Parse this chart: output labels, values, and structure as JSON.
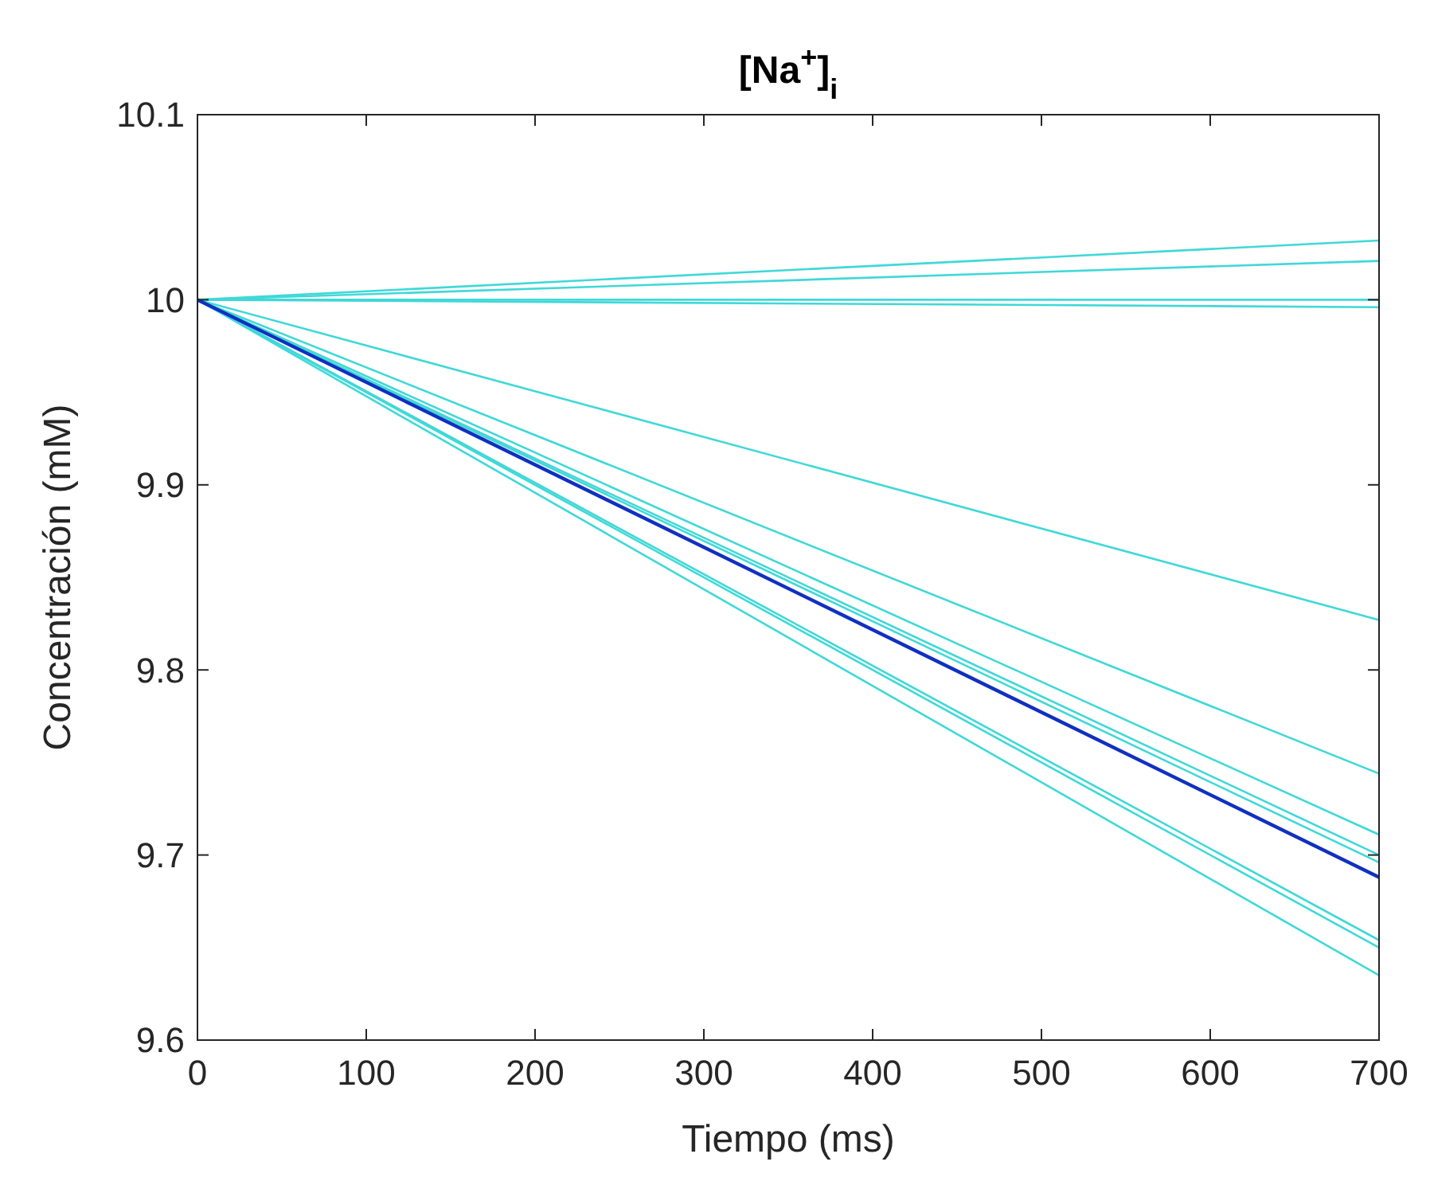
{
  "chart_data": {
    "type": "line",
    "title": "[Na$^{+}$]$_{i}$",
    "xlabel": "Tiempo (ms)",
    "ylabel": "Concentración (mM)",
    "x": [
      0,
      700
    ],
    "xlim": [
      0,
      700
    ],
    "xticks": [
      0,
      100,
      200,
      300,
      400,
      500,
      600,
      700
    ],
    "ylim": [
      9.6,
      10.1
    ],
    "yticks": [
      9.6,
      9.7,
      9.8,
      9.9,
      10,
      10.1
    ],
    "grid": false,
    "line_style": "solid",
    "marker": "none",
    "series": [
      {
        "color": "#40d8d8",
        "values": [
          10,
          10.032
        ]
      },
      {
        "color": "#40d8d8",
        "values": [
          10,
          10.021
        ]
      },
      {
        "color": "#40d8d8",
        "values": [
          10,
          10.0
        ]
      },
      {
        "color": "#40d8d8",
        "values": [
          10,
          9.996
        ]
      },
      {
        "color": "#40d8d8",
        "values": [
          10,
          9.827
        ]
      },
      {
        "color": "#40d8d8",
        "values": [
          10,
          9.744
        ]
      },
      {
        "color": "#40d8d8",
        "values": [
          10,
          9.711
        ]
      },
      {
        "color": "#40d8d8",
        "values": [
          10,
          9.7
        ]
      },
      {
        "color": "#40d8d8",
        "values": [
          10,
          9.696
        ]
      },
      {
        "color": "#40d8d8",
        "values": [
          10,
          9.654
        ]
      },
      {
        "color": "#40d8d8",
        "values": [
          10,
          9.65
        ]
      },
      {
        "color": "#40d8d8",
        "values": [
          10,
          9.635
        ]
      },
      {
        "color": "#1030c0",
        "values": [
          10,
          9.688
        ]
      }
    ]
  }
}
